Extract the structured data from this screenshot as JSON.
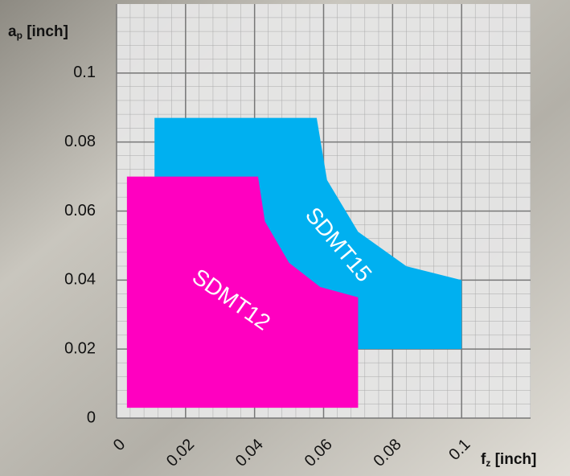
{
  "chart_data": {
    "type": "area-region",
    "ylabel": [
      "a",
      "p",
      " [inch]"
    ],
    "xlabel": [
      "f",
      "z",
      " [inch]"
    ],
    "xlim": [
      0,
      0.12
    ],
    "ylim": [
      0,
      0.12
    ],
    "xticks": [
      0,
      0.02,
      0.04,
      0.06,
      0.08,
      0.1
    ],
    "yticks": [
      0,
      0.02,
      0.04,
      0.06,
      0.08,
      0.1
    ],
    "grid": true,
    "series": [
      {
        "name": "SDMT15",
        "color": "#00b0f0",
        "x": [
          0.011,
          0.058,
          0.061,
          0.07,
          0.084,
          0.1,
          0.1,
          0.07,
          0.011
        ],
        "y": [
          0.087,
          0.087,
          0.069,
          0.054,
          0.044,
          0.04,
          0.02,
          0.02,
          0.02
        ]
      },
      {
        "name": "SDMT12",
        "color": "#ff00c0",
        "x": [
          0.003,
          0.041,
          0.043,
          0.05,
          0.059,
          0.07,
          0.07,
          0.003
        ],
        "y": [
          0.07,
          0.07,
          0.057,
          0.045,
          0.038,
          0.035,
          0.003,
          0.003
        ]
      }
    ]
  }
}
